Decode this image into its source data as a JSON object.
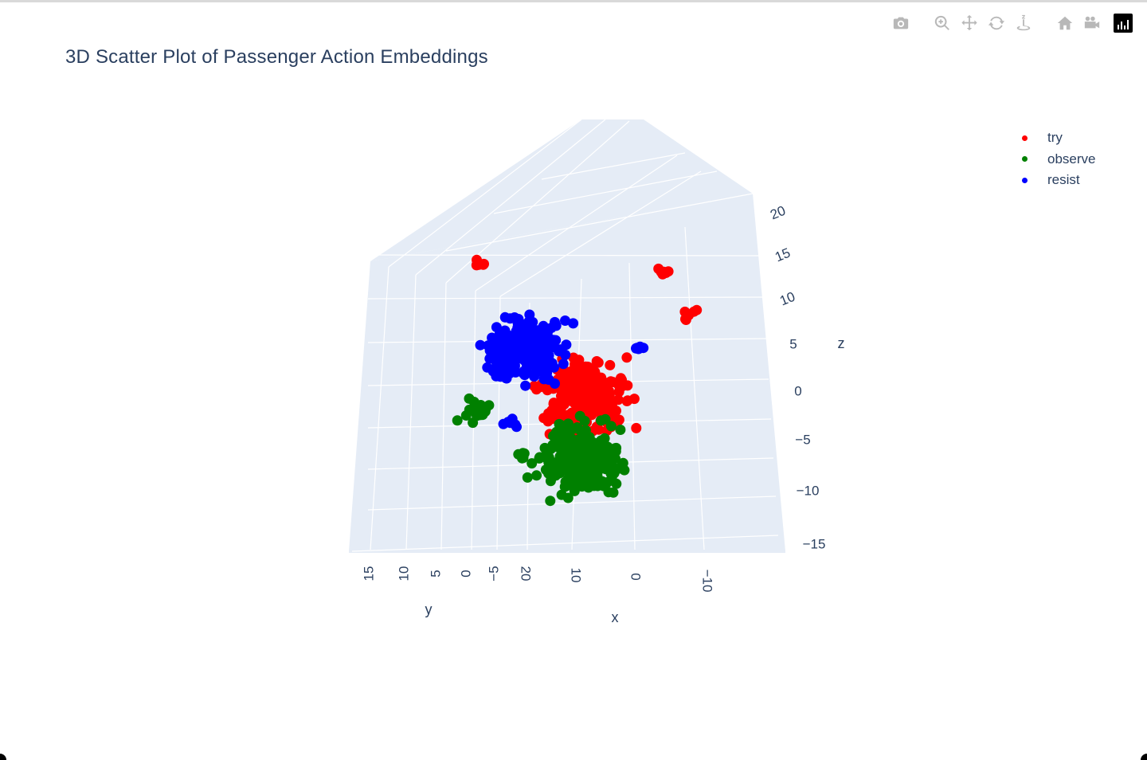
{
  "chart_data": {
    "type": "scatter",
    "title": "3D Scatter Plot of Passenger Action Embeddings",
    "axes": {
      "x": {
        "label": "x",
        "ticks": [
          "20",
          "10",
          "0",
          "−10"
        ]
      },
      "y": {
        "label": "y",
        "ticks": [
          "15",
          "10",
          "5",
          "0",
          "−5"
        ]
      },
      "z": {
        "label": "z",
        "ticks": [
          "20",
          "15",
          "10",
          "5",
          "0",
          "−5",
          "−10",
          "−15"
        ],
        "range": [
          -15,
          20
        ]
      }
    },
    "grid": true,
    "legend_position": "top-right",
    "series": [
      {
        "name": "try",
        "color": "#ff0000",
        "approx_clusters": [
          {
            "x": 3,
            "y": -5,
            "z": -2,
            "spread": 2.5
          },
          {
            "x": -8,
            "y": -8,
            "z": 7,
            "spread": 0.5
          },
          {
            "x": -5,
            "y": -7,
            "z": 12,
            "spread": 0.5
          },
          {
            "x": 14,
            "y": -3,
            "z": 14,
            "spread": 0.3
          }
        ]
      },
      {
        "name": "observe",
        "color": "#008000",
        "approx_clusters": [
          {
            "x": 2,
            "y": -12,
            "z": -11,
            "spread": 2.5
          },
          {
            "x": 17,
            "y": 9,
            "z": 0,
            "spread": 0.8
          },
          {
            "x": 10,
            "y": -2,
            "z": -8,
            "spread": 0.3
          }
        ]
      },
      {
        "name": "resist",
        "color": "#0000ff",
        "approx_clusters": [
          {
            "x": 10,
            "y": 0,
            "z": 5,
            "spread": 2.2
          },
          {
            "x": 14,
            "y": 8,
            "z": 4,
            "spread": 0.4
          },
          {
            "x": -3,
            "y": -8,
            "z": 3,
            "spread": 0.4
          },
          {
            "x": 12,
            "y": 2,
            "z": -3,
            "spread": 0.5
          }
        ]
      }
    ]
  },
  "modebar": {
    "buttons": [
      "camera-icon",
      "zoom-icon",
      "pan-icon",
      "orbit-rotation-icon",
      "turntable-rotation-icon",
      "home-icon",
      "video-camera-icon"
    ],
    "logo": "plotly-logo-icon"
  }
}
